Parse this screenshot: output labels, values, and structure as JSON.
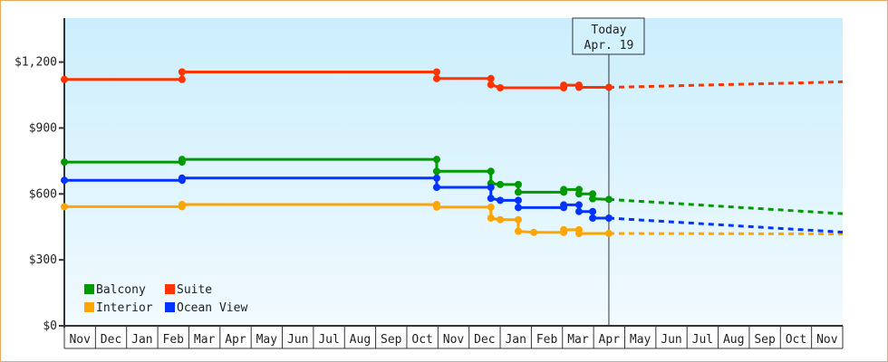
{
  "chart_data": {
    "type": "line",
    "title": "",
    "xlabel": "",
    "ylabel": "",
    "x_unit": "months from the start of the axis",
    "x_tick_labels": [
      "Nov",
      "Dec",
      "Jan",
      "Feb",
      "Mar",
      "Apr",
      "May",
      "Jun",
      "Jul",
      "Aug",
      "Sep",
      "Oct",
      "Nov",
      "Dec",
      "Jan",
      "Feb",
      "Mar",
      "Apr",
      "May",
      "Jun",
      "Jul",
      "Aug",
      "Sep",
      "Oct",
      "Nov"
    ],
    "xlim": [
      0,
      25
    ],
    "ylim": [
      0,
      1400
    ],
    "y_ticks": [
      0,
      300,
      600,
      900,
      1200
    ],
    "y_tick_labels": [
      "$0",
      "$300",
      "$600",
      "$900",
      "$1,200"
    ],
    "grid": false,
    "legend_placement": "bottom-left",
    "today": {
      "label": "Today",
      "date": "Apr. 19",
      "x": 17.49
    },
    "series": [
      {
        "name": "Balcony",
        "color": "#009900",
        "points": [
          [
            0,
            745
          ],
          [
            3.78,
            745
          ],
          [
            3.78,
            757
          ],
          [
            11.96,
            757
          ],
          [
            11.96,
            703
          ],
          [
            13.7,
            703
          ],
          [
            13.7,
            648
          ],
          [
            14.0,
            643
          ],
          [
            14.58,
            643
          ],
          [
            14.58,
            608
          ],
          [
            15.08,
            608
          ],
          [
            16.04,
            608
          ],
          [
            16.04,
            620
          ],
          [
            16.53,
            620
          ],
          [
            16.53,
            600
          ],
          [
            16.97,
            600
          ],
          [
            16.97,
            578
          ],
          [
            17.49,
            575
          ]
        ],
        "forecast": [
          [
            17.49,
            575
          ],
          [
            25,
            510
          ]
        ]
      },
      {
        "name": "Suite",
        "color": "#ff3300",
        "points": [
          [
            0,
            1121
          ],
          [
            3.78,
            1121
          ],
          [
            3.78,
            1155
          ],
          [
            11.96,
            1155
          ],
          [
            11.96,
            1125
          ],
          [
            13.7,
            1125
          ],
          [
            13.7,
            1097
          ],
          [
            14.0,
            1083
          ],
          [
            15.08,
            1083
          ],
          [
            16.04,
            1083
          ],
          [
            16.04,
            1095
          ],
          [
            16.53,
            1095
          ],
          [
            16.53,
            1085
          ],
          [
            17.49,
            1085
          ]
        ],
        "forecast": [
          [
            17.49,
            1085
          ],
          [
            25,
            1110
          ]
        ]
      },
      {
        "name": "Interior",
        "color": "#ffa500",
        "points": [
          [
            0,
            542
          ],
          [
            3.78,
            542
          ],
          [
            3.78,
            552
          ],
          [
            11.96,
            552
          ],
          [
            11.96,
            540
          ],
          [
            13.7,
            540
          ],
          [
            13.7,
            490
          ],
          [
            14.0,
            483
          ],
          [
            14.58,
            483
          ],
          [
            14.58,
            430
          ],
          [
            15.08,
            425
          ],
          [
            16.04,
            425
          ],
          [
            16.04,
            437
          ],
          [
            16.53,
            437
          ],
          [
            16.53,
            420
          ],
          [
            17.49,
            420
          ]
        ],
        "forecast": [
          [
            17.49,
            420
          ],
          [
            25,
            418
          ]
        ]
      },
      {
        "name": "Ocean View",
        "color": "#0033ff",
        "points": [
          [
            0,
            662
          ],
          [
            3.78,
            662
          ],
          [
            3.78,
            672
          ],
          [
            11.96,
            672
          ],
          [
            11.96,
            630
          ],
          [
            13.7,
            630
          ],
          [
            13.7,
            580
          ],
          [
            14.0,
            571
          ],
          [
            14.58,
            571
          ],
          [
            14.58,
            538
          ],
          [
            15.08,
            538
          ],
          [
            16.04,
            538
          ],
          [
            16.04,
            550
          ],
          [
            16.53,
            550
          ],
          [
            16.53,
            520
          ],
          [
            16.97,
            520
          ],
          [
            16.97,
            490
          ],
          [
            17.49,
            490
          ]
        ],
        "forecast": [
          [
            17.49,
            490
          ],
          [
            25,
            426
          ]
        ]
      }
    ]
  }
}
